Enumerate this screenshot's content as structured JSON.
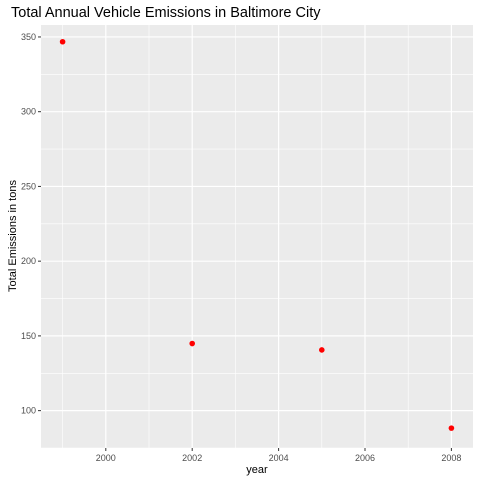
{
  "chart_data": {
    "type": "scatter",
    "title": "Total Annual Vehicle Emissions in Baltimore City",
    "xlabel": "year",
    "ylabel": "Total Emissions in tons",
    "x": [
      1999,
      2002,
      2005,
      2008
    ],
    "y": [
      346.8,
      144.9,
      140.6,
      88.3
    ],
    "xlim": [
      1998.5,
      2008.5
    ],
    "ylim": [
      75,
      358
    ],
    "x_ticks": [
      "2000",
      "2002",
      "2004",
      "2006",
      "2008"
    ],
    "y_ticks": [
      "100",
      "150",
      "200",
      "250",
      "300",
      "350"
    ],
    "point_color": "#ff0000",
    "panel_background": "#ebebeb",
    "grid_color": "#ffffff",
    "grid": true,
    "legend": "none"
  }
}
